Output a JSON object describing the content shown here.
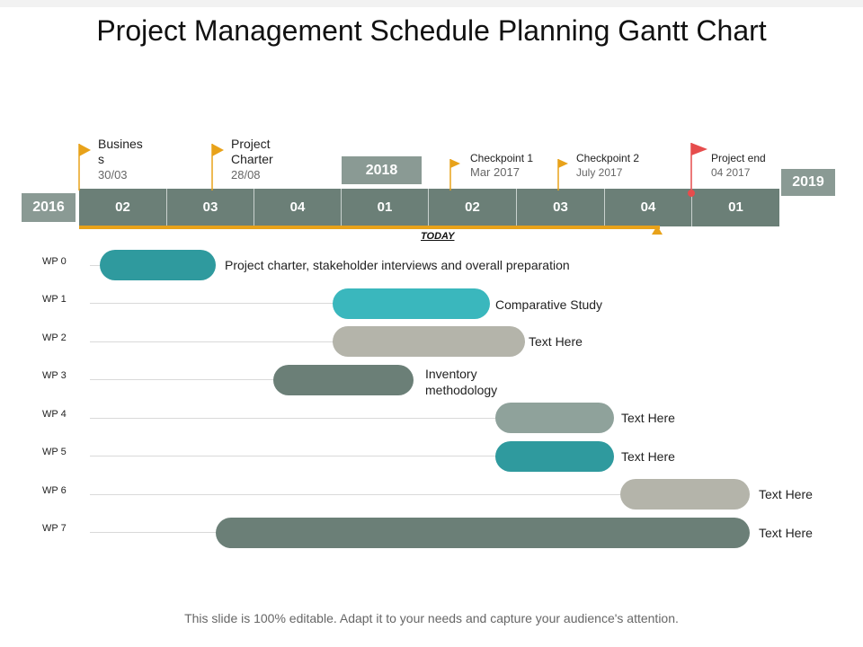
{
  "title": "Project Management Schedule Planning Gantt Chart",
  "years": {
    "y2016": "2016",
    "y2018": "2018",
    "y2019": "2019"
  },
  "timeline_cells": [
    "02",
    "03",
    "04",
    "01",
    "02",
    "03",
    "04",
    "01"
  ],
  "today_label": "TODAY",
  "milestones": [
    {
      "title_line1": "Busines",
      "title_line2": "s",
      "sub": "30/03",
      "color": "#e8a21a"
    },
    {
      "title_line1": "Project",
      "title_line2": "Charter",
      "sub": "28/08",
      "color": "#e8a21a"
    },
    {
      "title_line1": "Checkpoint 1",
      "sub": "Mar 2017",
      "color": "#e8a21a"
    },
    {
      "title_line1": "Checkpoint 2",
      "sub": "July 2017",
      "color": "#e8a21a"
    },
    {
      "title_line1": "Project end",
      "sub": "04 2017",
      "color": "#e64c4c"
    }
  ],
  "work_packages": [
    {
      "label": "WP 0",
      "text": "Project charter, stakeholder interviews and overall preparation",
      "color": "#2f9a9e"
    },
    {
      "label": "WP 1",
      "text": "Comparative Study",
      "color": "#3ab7bd"
    },
    {
      "label": "WP 2",
      "text": "Text Here",
      "color": "#b4b4aa"
    },
    {
      "label": "WP 3",
      "text_line1": "Inventory",
      "text_line2": "methodology",
      "color": "#6b7f77"
    },
    {
      "label": "WP 4",
      "text": "Text Here",
      "color": "#8fa29b"
    },
    {
      "label": "WP 5",
      "text": "Text Here",
      "color": "#2f9a9e"
    },
    {
      "label": "WP 6",
      "text": "Text Here",
      "color": "#b4b4aa"
    },
    {
      "label": "WP 7",
      "text": "Text Here",
      "color": "#6b7f77"
    }
  ],
  "footer": "This slide is 100% editable. Adapt it to your needs and capture your audience's attention."
}
